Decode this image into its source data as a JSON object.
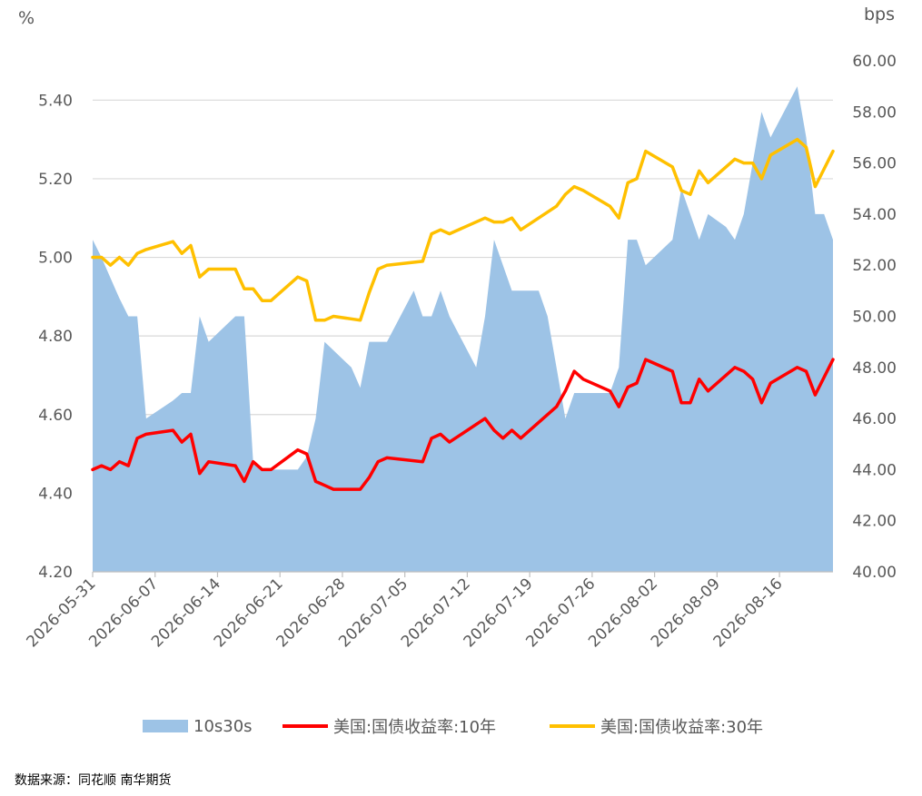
{
  "colors": {
    "area": "#9DC3E6",
    "ten_year": "#FF0000",
    "thirty_year": "#FFC000",
    "grid": "#D9D9D9",
    "axis": "#BFBFBF"
  },
  "source_text": "数据来源：同花顺 南华期货",
  "chart_data": {
    "type": "line",
    "xlabel": "",
    "x_tick_labels": [
      "2026-05-31",
      "2026-06-07",
      "2026-06-14",
      "2026-06-21",
      "2026-06-28",
      "2026-07-05",
      "2026-07-12",
      "2026-07-19",
      "2026-07-26",
      "2026-08-02",
      "2026-08-09",
      "2026-08-16"
    ],
    "x_range": [
      "2026-05-31",
      "2026-08-20"
    ],
    "left_axis": {
      "unit": "%",
      "ylim": [
        4.2,
        5.5
      ],
      "ticks": [
        "4.20",
        "4.40",
        "4.60",
        "4.80",
        "5.00",
        "5.20",
        "5.40"
      ]
    },
    "right_axis": {
      "unit": "bps",
      "ylim": [
        40,
        60
      ],
      "ticks": [
        "40.00",
        "42.00",
        "44.00",
        "46.00",
        "48.00",
        "50.00",
        "52.00",
        "54.00",
        "56.00",
        "58.00",
        "60.00"
      ]
    },
    "grid": true,
    "legend_position": "bottom",
    "series": [
      {
        "name": "10s30s",
        "type": "area",
        "axis": "right",
        "points": [
          [
            "2026-05-31",
            53.0
          ],
          [
            "2026-06-01",
            52.3
          ],
          [
            "2026-06-02",
            51.5
          ],
          [
            "2026-06-03",
            50.7
          ],
          [
            "2026-06-04",
            50.0
          ],
          [
            "2026-06-05",
            50.0
          ],
          [
            "2026-06-06",
            46.0
          ],
          [
            "2026-06-09",
            46.7
          ],
          [
            "2026-06-10",
            47.0
          ],
          [
            "2026-06-11",
            47.0
          ],
          [
            "2026-06-12",
            50.0
          ],
          [
            "2026-06-13",
            49.0
          ],
          [
            "2026-06-16",
            50.0
          ],
          [
            "2026-06-17",
            50.0
          ],
          [
            "2026-06-18",
            44.3
          ],
          [
            "2026-06-19",
            44.0
          ],
          [
            "2026-06-22",
            44.0
          ],
          [
            "2026-06-23",
            44.0
          ],
          [
            "2026-06-24",
            44.5
          ],
          [
            "2026-06-25",
            46.0
          ],
          [
            "2026-06-26",
            49.0
          ],
          [
            "2026-06-29",
            48.0
          ],
          [
            "2026-06-30",
            47.2
          ],
          [
            "2026-07-01",
            49.0
          ],
          [
            "2026-07-03",
            49.0
          ],
          [
            "2026-07-06",
            51.0
          ],
          [
            "2026-07-07",
            50.0
          ],
          [
            "2026-07-08",
            50.0
          ],
          [
            "2026-07-09",
            51.0
          ],
          [
            "2026-07-10",
            50.0
          ],
          [
            "2026-07-13",
            48.0
          ],
          [
            "2026-07-14",
            50.0
          ],
          [
            "2026-07-15",
            53.0
          ],
          [
            "2026-07-16",
            52.0
          ],
          [
            "2026-07-17",
            51.0
          ],
          [
            "2026-07-20",
            51.0
          ],
          [
            "2026-07-21",
            50.0
          ],
          [
            "2026-07-22",
            48.0
          ],
          [
            "2026-07-23",
            46.0
          ],
          [
            "2026-07-24",
            47.0
          ],
          [
            "2026-07-27",
            47.0
          ],
          [
            "2026-07-28",
            47.0
          ],
          [
            "2026-07-29",
            48.0
          ],
          [
            "2026-07-30",
            53.0
          ],
          [
            "2026-07-31",
            53.0
          ],
          [
            "2026-08-01",
            52.0
          ],
          [
            "2026-08-04",
            53.0
          ],
          [
            "2026-08-05",
            55.0
          ],
          [
            "2026-08-06",
            54.0
          ],
          [
            "2026-08-07",
            53.0
          ],
          [
            "2026-08-08",
            54.0
          ],
          [
            "2026-08-10",
            53.5
          ],
          [
            "2026-08-11",
            53.0
          ],
          [
            "2026-08-12",
            54.0
          ],
          [
            "2026-08-13",
            56.0
          ],
          [
            "2026-08-14",
            58.0
          ],
          [
            "2026-08-15",
            57.0
          ],
          [
            "2026-08-18",
            59.0
          ],
          [
            "2026-08-19",
            57.0
          ],
          [
            "2026-08-20",
            54.0
          ],
          [
            "2026-08-21",
            54.0
          ],
          [
            "2026-08-22",
            53.0
          ]
        ]
      },
      {
        "name": "美国:国债收益率:10年",
        "type": "line",
        "axis": "left",
        "points": [
          [
            "2026-05-31",
            4.46
          ],
          [
            "2026-06-01",
            4.47
          ],
          [
            "2026-06-02",
            4.46
          ],
          [
            "2026-06-03",
            4.48
          ],
          [
            "2026-06-04",
            4.47
          ],
          [
            "2026-06-05",
            4.54
          ],
          [
            "2026-06-06",
            4.55
          ],
          [
            "2026-06-09",
            4.56
          ],
          [
            "2026-06-10",
            4.53
          ],
          [
            "2026-06-11",
            4.55
          ],
          [
            "2026-06-12",
            4.45
          ],
          [
            "2026-06-13",
            4.48
          ],
          [
            "2026-06-16",
            4.47
          ],
          [
            "2026-06-17",
            4.43
          ],
          [
            "2026-06-18",
            4.48
          ],
          [
            "2026-06-19",
            4.46
          ],
          [
            "2026-06-20",
            4.46
          ],
          [
            "2026-06-23",
            4.51
          ],
          [
            "2026-06-24",
            4.5
          ],
          [
            "2026-06-25",
            4.43
          ],
          [
            "2026-06-26",
            4.42
          ],
          [
            "2026-06-27",
            4.41
          ],
          [
            "2026-06-30",
            4.41
          ],
          [
            "2026-07-01",
            4.44
          ],
          [
            "2026-07-02",
            4.48
          ],
          [
            "2026-07-03",
            4.49
          ],
          [
            "2026-07-07",
            4.48
          ],
          [
            "2026-07-08",
            4.54
          ],
          [
            "2026-07-09",
            4.55
          ],
          [
            "2026-07-10",
            4.53
          ],
          [
            "2026-07-14",
            4.59
          ],
          [
            "2026-07-15",
            4.56
          ],
          [
            "2026-07-16",
            4.54
          ],
          [
            "2026-07-17",
            4.56
          ],
          [
            "2026-07-18",
            4.54
          ],
          [
            "2026-07-22",
            4.62
          ],
          [
            "2026-07-23",
            4.66
          ],
          [
            "2026-07-24",
            4.71
          ],
          [
            "2026-07-25",
            4.69
          ],
          [
            "2026-07-28",
            4.66
          ],
          [
            "2026-07-29",
            4.62
          ],
          [
            "2026-07-30",
            4.67
          ],
          [
            "2026-07-31",
            4.68
          ],
          [
            "2026-08-01",
            4.74
          ],
          [
            "2026-08-04",
            4.71
          ],
          [
            "2026-08-05",
            4.63
          ],
          [
            "2026-08-06",
            4.63
          ],
          [
            "2026-08-07",
            4.69
          ],
          [
            "2026-08-08",
            4.66
          ],
          [
            "2026-08-11",
            4.72
          ],
          [
            "2026-08-12",
            4.71
          ],
          [
            "2026-08-13",
            4.69
          ],
          [
            "2026-08-14",
            4.63
          ],
          [
            "2026-08-15",
            4.68
          ],
          [
            "2026-08-18",
            4.72
          ],
          [
            "2026-08-19",
            4.71
          ],
          [
            "2026-08-20",
            4.65
          ],
          [
            "2026-08-22",
            4.74
          ]
        ]
      },
      {
        "name": "美国:国债收益率:30年",
        "type": "line",
        "axis": "left",
        "points": [
          [
            "2026-05-31",
            5.0
          ],
          [
            "2026-06-01",
            5.0
          ],
          [
            "2026-06-02",
            4.98
          ],
          [
            "2026-06-03",
            5.0
          ],
          [
            "2026-06-04",
            4.98
          ],
          [
            "2026-06-05",
            5.01
          ],
          [
            "2026-06-06",
            5.02
          ],
          [
            "2026-06-09",
            5.04
          ],
          [
            "2026-06-10",
            5.01
          ],
          [
            "2026-06-11",
            5.03
          ],
          [
            "2026-06-12",
            4.95
          ],
          [
            "2026-06-13",
            4.97
          ],
          [
            "2026-06-16",
            4.97
          ],
          [
            "2026-06-17",
            4.92
          ],
          [
            "2026-06-18",
            4.92
          ],
          [
            "2026-06-19",
            4.89
          ],
          [
            "2026-06-20",
            4.89
          ],
          [
            "2026-06-23",
            4.95
          ],
          [
            "2026-06-24",
            4.94
          ],
          [
            "2026-06-25",
            4.84
          ],
          [
            "2026-06-26",
            4.84
          ],
          [
            "2026-06-27",
            4.85
          ],
          [
            "2026-06-30",
            4.84
          ],
          [
            "2026-07-01",
            4.91
          ],
          [
            "2026-07-02",
            4.97
          ],
          [
            "2026-07-03",
            4.98
          ],
          [
            "2026-07-07",
            4.99
          ],
          [
            "2026-07-08",
            5.06
          ],
          [
            "2026-07-09",
            5.07
          ],
          [
            "2026-07-10",
            5.06
          ],
          [
            "2026-07-14",
            5.1
          ],
          [
            "2026-07-15",
            5.09
          ],
          [
            "2026-07-16",
            5.09
          ],
          [
            "2026-07-17",
            5.1
          ],
          [
            "2026-07-18",
            5.07
          ],
          [
            "2026-07-22",
            5.13
          ],
          [
            "2026-07-23",
            5.16
          ],
          [
            "2026-07-24",
            5.18
          ],
          [
            "2026-07-25",
            5.17
          ],
          [
            "2026-07-28",
            5.13
          ],
          [
            "2026-07-29",
            5.1
          ],
          [
            "2026-07-30",
            5.19
          ],
          [
            "2026-07-31",
            5.2
          ],
          [
            "2026-08-01",
            5.27
          ],
          [
            "2026-08-04",
            5.23
          ],
          [
            "2026-08-05",
            5.17
          ],
          [
            "2026-08-06",
            5.16
          ],
          [
            "2026-08-07",
            5.22
          ],
          [
            "2026-08-08",
            5.19
          ],
          [
            "2026-08-11",
            5.25
          ],
          [
            "2026-08-12",
            5.24
          ],
          [
            "2026-08-13",
            5.24
          ],
          [
            "2026-08-14",
            5.2
          ],
          [
            "2026-08-15",
            5.26
          ],
          [
            "2026-08-18",
            5.3
          ],
          [
            "2026-08-19",
            5.28
          ],
          [
            "2026-08-20",
            5.18
          ],
          [
            "2026-08-22",
            5.27
          ]
        ]
      }
    ]
  }
}
